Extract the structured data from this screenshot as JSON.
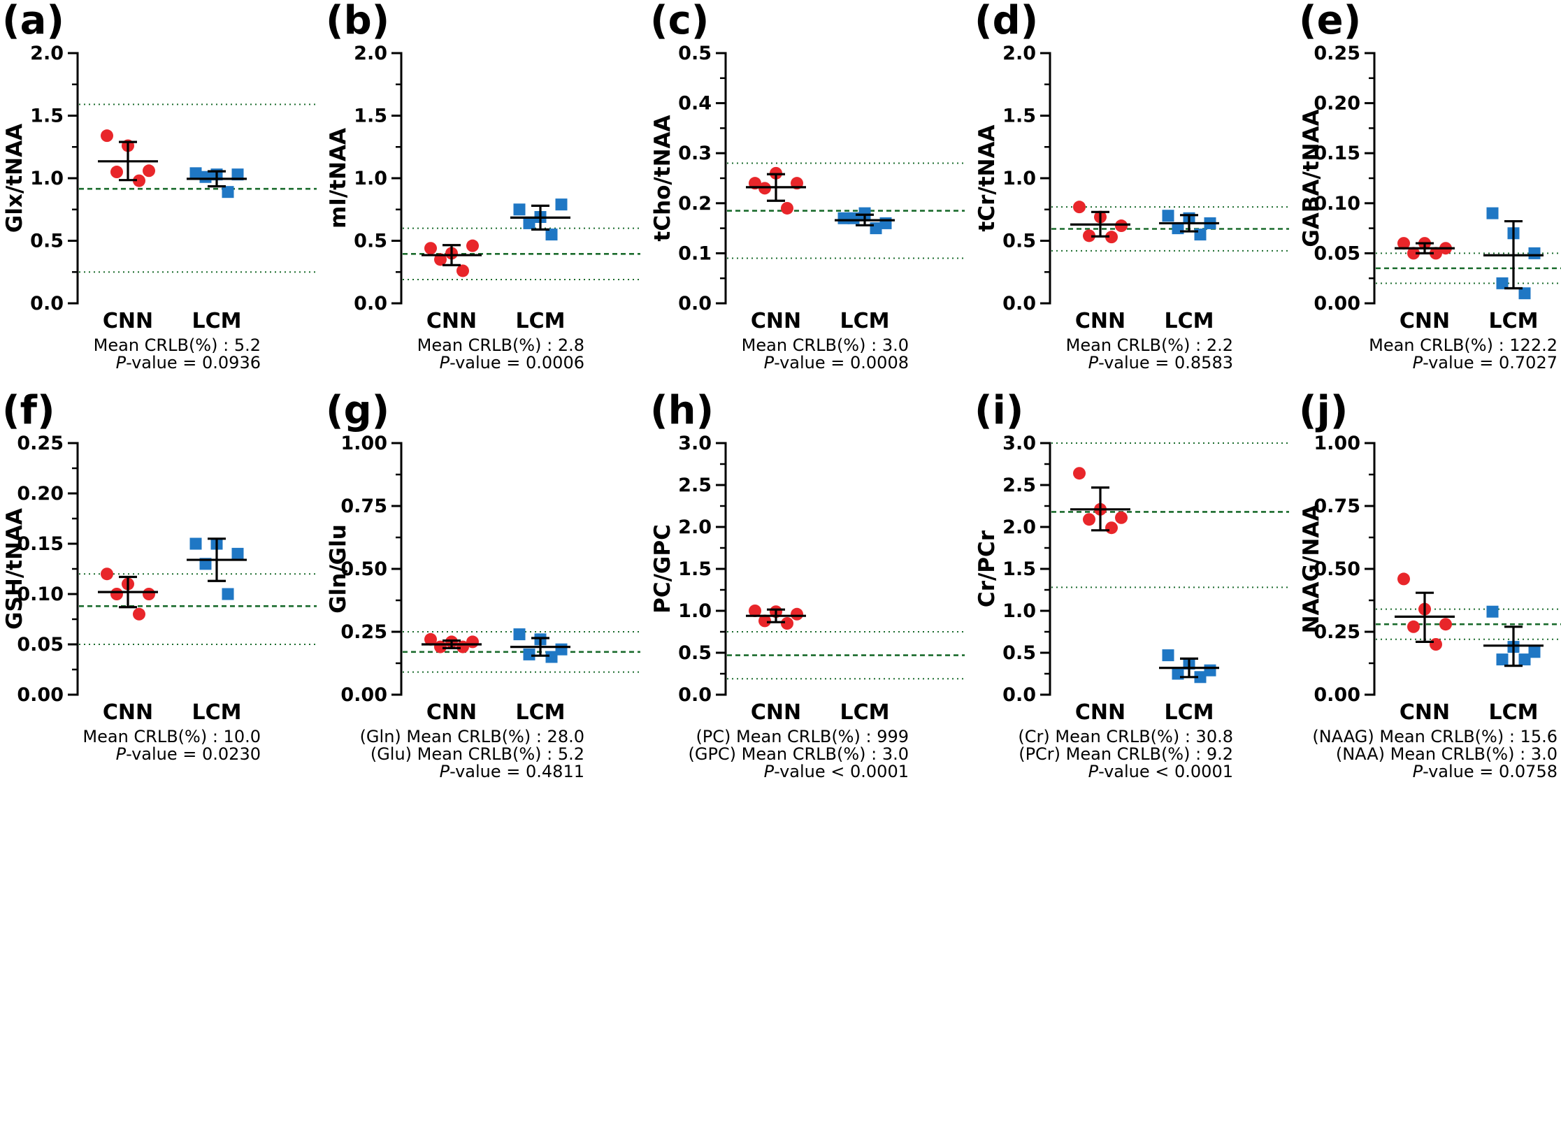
{
  "figure": {
    "colors": {
      "cnn": "#e8262a",
      "lcm": "#1f77c4",
      "ref": "#1a6b2c",
      "axis": "#000000"
    }
  },
  "chart_data": [
    {
      "panel": "(a)",
      "type": "scatter",
      "ylabel": "Glx/tNAA",
      "ylim": [
        0,
        2.0
      ],
      "yticks": [
        "0.0",
        "0.5",
        "1.0",
        "1.5",
        "2.0"
      ],
      "yvals": [
        0,
        0.5,
        1.0,
        1.5,
        2.0
      ],
      "categories": [
        "CNN",
        "LCM"
      ],
      "series": [
        {
          "name": "CNN",
          "points": [
            1.34,
            1.26,
            1.06,
            1.05,
            0.98
          ],
          "mean": 1.135,
          "sd_low": 0.985,
          "sd_high": 1.29
        },
        {
          "name": "LCM",
          "points": [
            1.04,
            1.03,
            1.03,
            1.01,
            0.89
          ],
          "mean": 0.995,
          "sd_low": 0.935,
          "sd_high": 1.055
        }
      ],
      "ref_mean": 0.915,
      "ref_low": 0.25,
      "ref_high": 1.59,
      "notes": [
        {
          "text": "Mean CRLB(%) : 5.2"
        },
        {
          "prefix": "P",
          "text": "-value = 0.0936"
        }
      ]
    },
    {
      "panel": "(b)",
      "type": "scatter",
      "ylabel": "mI/tNAA",
      "ylim": [
        0,
        2.0
      ],
      "yticks": [
        "0.0",
        "0.5",
        "1.0",
        "1.5",
        "2.0"
      ],
      "yvals": [
        0,
        0.5,
        1.0,
        1.5,
        2.0
      ],
      "categories": [
        "CNN",
        "LCM"
      ],
      "series": [
        {
          "name": "CNN",
          "points": [
            0.44,
            0.4,
            0.46,
            0.35,
            0.26
          ],
          "mean": 0.385,
          "sd_low": 0.305,
          "sd_high": 0.465
        },
        {
          "name": "LCM",
          "points": [
            0.75,
            0.69,
            0.79,
            0.64,
            0.55
          ],
          "mean": 0.685,
          "sd_low": 0.59,
          "sd_high": 0.78
        }
      ],
      "ref_mean": 0.395,
      "ref_low": 0.19,
      "ref_high": 0.6,
      "notes": [
        {
          "text": "Mean CRLB(%) : 2.8"
        },
        {
          "prefix": "P",
          "text": "-value = 0.0006"
        }
      ]
    },
    {
      "panel": "(c)",
      "type": "scatter",
      "ylabel": "tCho/tNAA",
      "ylim": [
        0,
        0.5
      ],
      "yticks": [
        "0.0",
        "0.1",
        "0.2",
        "0.3",
        "0.4",
        "0.5"
      ],
      "yvals": [
        0,
        0.1,
        0.2,
        0.3,
        0.4,
        0.5
      ],
      "categories": [
        "CNN",
        "LCM"
      ],
      "series": [
        {
          "name": "CNN",
          "points": [
            0.24,
            0.26,
            0.24,
            0.23,
            0.19
          ],
          "mean": 0.232,
          "sd_low": 0.205,
          "sd_high": 0.258
        },
        {
          "name": "LCM",
          "points": [
            0.17,
            0.18,
            0.16,
            0.17,
            0.15
          ],
          "mean": 0.166,
          "sd_low": 0.156,
          "sd_high": 0.177
        }
      ],
      "ref_mean": 0.185,
      "ref_low": 0.09,
      "ref_high": 0.28,
      "notes": [
        {
          "text": "Mean CRLB(%) : 3.0"
        },
        {
          "prefix": "P",
          "text": "-value = 0.0008"
        }
      ]
    },
    {
      "panel": "(d)",
      "type": "scatter",
      "ylabel": "tCr/tNAA",
      "ylim": [
        0,
        2.0
      ],
      "yticks": [
        "0.0",
        "0.5",
        "1.0",
        "1.5",
        "2.0"
      ],
      "yvals": [
        0,
        0.5,
        1.0,
        1.5,
        2.0
      ],
      "categories": [
        "CNN",
        "LCM"
      ],
      "series": [
        {
          "name": "CNN",
          "points": [
            0.77,
            0.69,
            0.62,
            0.54,
            0.53
          ],
          "mean": 0.63,
          "sd_low": 0.535,
          "sd_high": 0.73
        },
        {
          "name": "LCM",
          "points": [
            0.7,
            0.68,
            0.64,
            0.6,
            0.55
          ],
          "mean": 0.64,
          "sd_low": 0.575,
          "sd_high": 0.705
        }
      ],
      "ref_mean": 0.595,
      "ref_low": 0.42,
      "ref_high": 0.77,
      "notes": [
        {
          "text": "Mean CRLB(%) : 2.2"
        },
        {
          "prefix": "P",
          "text": "-value = 0.8583"
        }
      ]
    },
    {
      "panel": "(e)",
      "type": "scatter",
      "ylabel": "GABA/tNAA",
      "ylim": [
        0,
        0.25
      ],
      "yticks": [
        "0.00",
        "0.05",
        "0.10",
        "0.15",
        "0.20",
        "0.25"
      ],
      "yvals": [
        0,
        0.05,
        0.1,
        0.15,
        0.2,
        0.25
      ],
      "categories": [
        "CNN",
        "LCM"
      ],
      "series": [
        {
          "name": "CNN",
          "points": [
            0.06,
            0.06,
            0.055,
            0.05,
            0.05
          ],
          "mean": 0.055,
          "sd_low": 0.05,
          "sd_high": 0.06
        },
        {
          "name": "LCM",
          "points": [
            0.09,
            0.07,
            0.05,
            0.02,
            0.01
          ],
          "mean": 0.048,
          "sd_low": 0.015,
          "sd_high": 0.082
        }
      ],
      "ref_mean": 0.035,
      "ref_low": 0.02,
      "ref_high": 0.05,
      "notes": [
        {
          "text": "Mean CRLB(%) : 122.2"
        },
        {
          "prefix": "P",
          "text": "-value = 0.7027"
        }
      ]
    },
    {
      "panel": "(f)",
      "type": "scatter",
      "ylabel": "GSH/tNAA",
      "ylim": [
        0,
        0.25
      ],
      "yticks": [
        "0.00",
        "0.05",
        "0.10",
        "0.15",
        "0.20",
        "0.25"
      ],
      "yvals": [
        0,
        0.05,
        0.1,
        0.15,
        0.2,
        0.25
      ],
      "categories": [
        "CNN",
        "LCM"
      ],
      "series": [
        {
          "name": "CNN",
          "points": [
            0.12,
            0.11,
            0.1,
            0.1,
            0.08
          ],
          "mean": 0.102,
          "sd_low": 0.087,
          "sd_high": 0.117
        },
        {
          "name": "LCM",
          "points": [
            0.15,
            0.15,
            0.14,
            0.13,
            0.1
          ],
          "mean": 0.134,
          "sd_low": 0.113,
          "sd_high": 0.155
        }
      ],
      "ref_mean": 0.088,
      "ref_low": 0.05,
      "ref_high": 0.12,
      "notes": [
        {
          "text": "Mean CRLB(%) : 10.0"
        },
        {
          "prefix": "P",
          "text": "-value = 0.0230"
        }
      ]
    },
    {
      "panel": "(g)",
      "type": "scatter",
      "ylabel": "Gln/Glu",
      "ylim": [
        0,
        1.0
      ],
      "yticks": [
        "0.00",
        "0.25",
        "0.50",
        "0.75",
        "1.00"
      ],
      "yvals": [
        0,
        0.25,
        0.5,
        0.75,
        1.0
      ],
      "categories": [
        "CNN",
        "LCM"
      ],
      "series": [
        {
          "name": "CNN",
          "points": [
            0.22,
            0.21,
            0.21,
            0.19,
            0.19
          ],
          "mean": 0.2,
          "sd_low": 0.185,
          "sd_high": 0.215
        },
        {
          "name": "LCM",
          "points": [
            0.24,
            0.22,
            0.18,
            0.16,
            0.15
          ],
          "mean": 0.19,
          "sd_low": 0.155,
          "sd_high": 0.225
        }
      ],
      "ref_mean": 0.17,
      "ref_low": 0.09,
      "ref_high": 0.25,
      "notes": [
        {
          "text": "(Gln) Mean CRLB(%) : 28.0"
        },
        {
          "text": "(Glu) Mean CRLB(%) : 5.2"
        },
        {
          "prefix": "P",
          "text": "-value = 0.4811"
        }
      ]
    },
    {
      "panel": "(h)",
      "type": "scatter",
      "ylabel": "PC/GPC",
      "ylim": [
        0,
        3.0
      ],
      "yticks": [
        "0.0",
        "0.5",
        "1.0",
        "1.5",
        "2.0",
        "2.5",
        "3.0"
      ],
      "yvals": [
        0,
        0.5,
        1.0,
        1.5,
        2.0,
        2.5,
        3.0
      ],
      "categories": [
        "CNN",
        "LCM"
      ],
      "series": [
        {
          "name": "CNN",
          "points": [
            1.0,
            0.99,
            0.96,
            0.88,
            0.85
          ],
          "mean": 0.94,
          "sd_low": 0.865,
          "sd_high": 1.015
        },
        {
          "name": "LCM",
          "points": [],
          "mean": null,
          "sd_low": null,
          "sd_high": null
        }
      ],
      "ref_mean": 0.47,
      "ref_low": 0.19,
      "ref_high": 0.75,
      "notes": [
        {
          "text": "(PC) Mean CRLB(%) : 999"
        },
        {
          "text": "(GPC) Mean CRLB(%) : 3.0"
        },
        {
          "prefix": "P",
          "text": "-value < 0.0001"
        }
      ]
    },
    {
      "panel": "(i)",
      "type": "scatter",
      "ylabel": "Cr/PCr",
      "ylim": [
        0,
        3.0
      ],
      "yticks": [
        "0.0",
        "0.5",
        "1.0",
        "1.5",
        "2.0",
        "2.5",
        "3.0"
      ],
      "yvals": [
        0,
        0.5,
        1.0,
        1.5,
        2.0,
        2.5,
        3.0
      ],
      "categories": [
        "CNN",
        "LCM"
      ],
      "series": [
        {
          "name": "CNN",
          "points": [
            2.64,
            2.21,
            2.11,
            2.09,
            1.99
          ],
          "mean": 2.21,
          "sd_low": 1.96,
          "sd_high": 2.47
        },
        {
          "name": "LCM",
          "points": [
            0.47,
            0.37,
            0.29,
            0.25,
            0.21
          ],
          "mean": 0.32,
          "sd_low": 0.21,
          "sd_high": 0.43
        }
      ],
      "ref_mean": 2.18,
      "ref_low": 1.28,
      "ref_high": 3.0,
      "notes": [
        {
          "text": "(Cr) Mean CRLB(%) : 30.8"
        },
        {
          "text": "(PCr) Mean CRLB(%) : 9.2"
        },
        {
          "prefix": "P",
          "text": "-value < 0.0001"
        }
      ]
    },
    {
      "panel": "(j)",
      "type": "scatter",
      "ylabel": "NAAG/NAA",
      "ylim": [
        0,
        1.0
      ],
      "yticks": [
        "0.00",
        "0.25",
        "0.50",
        "0.75",
        "1.00"
      ],
      "yvals": [
        0,
        0.25,
        0.5,
        0.75,
        1.0
      ],
      "categories": [
        "CNN",
        "LCM"
      ],
      "series": [
        {
          "name": "CNN",
          "points": [
            0.46,
            0.34,
            0.28,
            0.27,
            0.2
          ],
          "mean": 0.31,
          "sd_low": 0.21,
          "sd_high": 0.405
        },
        {
          "name": "LCM",
          "points": [
            0.33,
            0.19,
            0.17,
            0.14,
            0.14
          ],
          "mean": 0.195,
          "sd_low": 0.115,
          "sd_high": 0.27
        }
      ],
      "ref_mean": 0.28,
      "ref_low": 0.22,
      "ref_high": 0.34,
      "notes": [
        {
          "text": "(NAAG) Mean CRLB(%) : 15.6"
        },
        {
          "text": "(NAA) Mean CRLB(%) : 3.0"
        },
        {
          "prefix": "P",
          "text": "-value = 0.0758"
        }
      ]
    }
  ]
}
